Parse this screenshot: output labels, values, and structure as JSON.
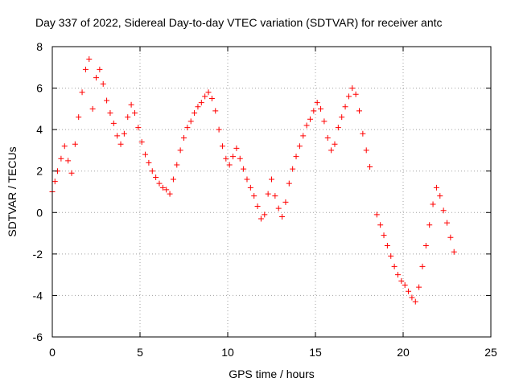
{
  "chart_data": {
    "type": "scatter",
    "title": "Day 337 of 2022, Sidereal Day-to-day VTEC variation (SDTVAR) for receiver antc",
    "xlabel": "GPS time / hours",
    "ylabel": "SDTVAR / TECUs",
    "xlim": [
      0,
      25
    ],
    "ylim": [
      -6,
      8
    ],
    "xticks": [
      0,
      5,
      10,
      15,
      20,
      25
    ],
    "yticks": [
      -6,
      -4,
      -2,
      0,
      2,
      4,
      6,
      8
    ],
    "grid": true,
    "marker": "+",
    "color": "#ff0000",
    "series": [
      {
        "name": "SDTVAR",
        "x": [
          0.0,
          0.15,
          0.3,
          0.5,
          0.7,
          0.9,
          1.1,
          1.3,
          1.5,
          1.7,
          1.9,
          2.1,
          2.3,
          2.5,
          2.7,
          2.9,
          3.1,
          3.3,
          3.5,
          3.7,
          3.9,
          4.1,
          4.3,
          4.5,
          4.7,
          4.9,
          5.1,
          5.3,
          5.5,
          5.7,
          5.9,
          6.1,
          6.3,
          6.5,
          6.7,
          6.9,
          7.1,
          7.3,
          7.5,
          7.7,
          7.9,
          8.1,
          8.3,
          8.5,
          8.7,
          8.9,
          9.1,
          9.3,
          9.5,
          9.7,
          9.9,
          10.1,
          10.3,
          10.5,
          10.7,
          10.9,
          11.1,
          11.3,
          11.5,
          11.7,
          11.9,
          12.1,
          12.3,
          12.5,
          12.7,
          12.9,
          13.1,
          13.3,
          13.5,
          13.7,
          13.9,
          14.1,
          14.3,
          14.5,
          14.7,
          14.9,
          15.1,
          15.3,
          15.5,
          15.7,
          15.9,
          16.1,
          16.3,
          16.5,
          16.7,
          16.9,
          17.1,
          17.3,
          17.5,
          17.7,
          17.9,
          18.1,
          18.5,
          18.7,
          18.9,
          19.1,
          19.3,
          19.5,
          19.7,
          19.9,
          20.1,
          20.3,
          20.5,
          20.7,
          20.9,
          21.1,
          21.3,
          21.5,
          21.7,
          21.9,
          22.1,
          22.3,
          22.5,
          22.7,
          22.9
        ],
        "y": [
          1.0,
          1.5,
          2.0,
          2.6,
          3.2,
          2.5,
          1.9,
          3.3,
          4.6,
          5.8,
          6.9,
          7.4,
          5.0,
          6.5,
          6.9,
          6.2,
          5.4,
          4.8,
          4.3,
          3.7,
          3.3,
          3.8,
          4.6,
          5.2,
          4.8,
          4.1,
          3.4,
          2.8,
          2.4,
          2.0,
          1.7,
          1.4,
          1.2,
          1.1,
          0.9,
          1.6,
          2.3,
          3.0,
          3.6,
          4.1,
          4.4,
          4.8,
          5.1,
          5.3,
          5.6,
          5.8,
          5.5,
          4.9,
          4.0,
          3.2,
          2.6,
          2.3,
          2.7,
          3.1,
          2.6,
          2.1,
          1.6,
          1.2,
          0.8,
          0.3,
          -0.3,
          -0.1,
          0.9,
          1.6,
          0.8,
          0.2,
          -0.2,
          0.5,
          1.4,
          2.1,
          2.7,
          3.2,
          3.7,
          4.2,
          4.5,
          4.9,
          5.3,
          5.0,
          4.4,
          3.6,
          3.0,
          3.3,
          4.1,
          4.6,
          5.1,
          5.6,
          6.0,
          5.7,
          4.9,
          3.8,
          3.0,
          2.2,
          -0.1,
          -0.6,
          -1.1,
          -1.6,
          -2.1,
          -2.6,
          -3.0,
          -3.3,
          -3.5,
          -3.8,
          -4.1,
          -4.3,
          -3.6,
          -2.6,
          -1.6,
          -0.6,
          0.4,
          1.2,
          0.8,
          0.1,
          -0.5,
          -1.2,
          -1.9
        ]
      }
    ]
  }
}
